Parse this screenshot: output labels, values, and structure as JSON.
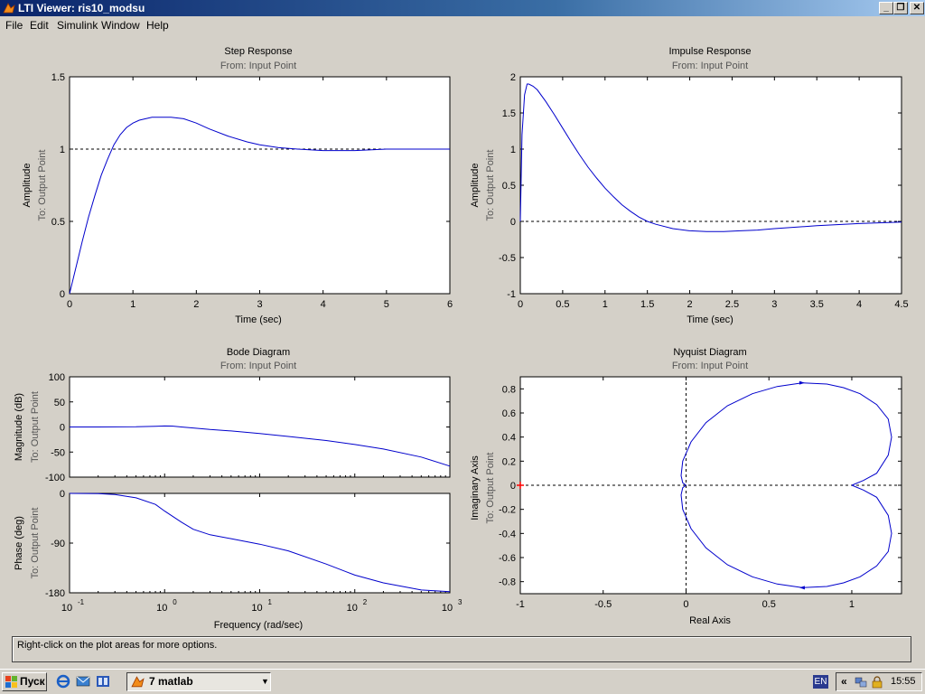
{
  "window": {
    "title": "LTI Viewer: ris10_modsu",
    "minimize": "_",
    "restore": "❐",
    "close": "✕"
  },
  "menu": [
    "File",
    "Edit",
    "Simulink",
    "Window",
    "Help"
  ],
  "status_text": "Right-click on the plot areas for more options.",
  "taskbar": {
    "start_label": "Пуск",
    "task_label": "7 matlab",
    "language": "EN",
    "tray_chevron": "«",
    "clock": "15:55"
  },
  "colors": {
    "response": "#0000cc",
    "reference": "#000000",
    "critical_point": "#ff0000",
    "title_bar": "#0a246a"
  },
  "chart_data": [
    {
      "id": "step",
      "type": "line",
      "title": "Step Response",
      "subtitle": "From: Input Point",
      "xlabel": "Time (sec)",
      "ylabel": "Amplitude",
      "ylabel2": "To: Output Point",
      "xlim": [
        0,
        6
      ],
      "ylim": [
        0,
        1.5
      ],
      "xticks": [
        "0",
        "1",
        "2",
        "3",
        "4",
        "5",
        "6"
      ],
      "yticks": [
        "0",
        "0.5",
        "1",
        "1.5"
      ],
      "reference_line": 1,
      "series": [
        {
          "x": [
            0,
            0.1,
            0.2,
            0.3,
            0.4,
            0.5,
            0.6,
            0.7,
            0.8,
            0.9,
            1.0,
            1.1,
            1.2,
            1.3,
            1.4,
            1.5,
            1.6,
            1.8,
            2.0,
            2.2,
            2.5,
            2.8,
            3.0,
            3.3,
            3.6,
            4.0,
            4.2,
            4.5,
            5.0,
            5.5,
            6.0
          ],
          "y": [
            0,
            0.18,
            0.36,
            0.53,
            0.68,
            0.82,
            0.93,
            1.03,
            1.1,
            1.15,
            1.18,
            1.2,
            1.21,
            1.22,
            1.22,
            1.22,
            1.22,
            1.21,
            1.18,
            1.14,
            1.09,
            1.05,
            1.03,
            1.01,
            1.0,
            0.99,
            0.99,
            0.99,
            1.0,
            1.0,
            1.0
          ]
        }
      ]
    },
    {
      "id": "impulse",
      "type": "line",
      "title": "Impulse Response",
      "subtitle": "From: Input Point",
      "xlabel": "Time (sec)",
      "ylabel": "Amplitude",
      "ylabel2": "To: Output Point",
      "xlim": [
        0,
        4.5
      ],
      "ylim": [
        -1,
        2
      ],
      "xticks": [
        "0",
        "0.5",
        "1",
        "1.5",
        "2",
        "2.5",
        "3",
        "3.5",
        "4",
        "4.5"
      ],
      "yticks": [
        "-1",
        "-0.5",
        "0",
        "0.5",
        "1",
        "1.5",
        "2"
      ],
      "reference_line": 0,
      "series": [
        {
          "x": [
            0,
            0.02,
            0.05,
            0.08,
            0.1,
            0.15,
            0.2,
            0.3,
            0.4,
            0.5,
            0.6,
            0.7,
            0.8,
            0.9,
            1.0,
            1.1,
            1.2,
            1.3,
            1.4,
            1.5,
            1.6,
            1.8,
            2.0,
            2.2,
            2.4,
            2.6,
            2.8,
            3.0,
            3.5,
            4.0,
            4.5
          ],
          "y": [
            0,
            1.2,
            1.75,
            1.9,
            1.9,
            1.87,
            1.82,
            1.66,
            1.48,
            1.29,
            1.1,
            0.92,
            0.75,
            0.6,
            0.46,
            0.34,
            0.23,
            0.14,
            0.06,
            0.0,
            -0.04,
            -0.1,
            -0.13,
            -0.14,
            -0.14,
            -0.13,
            -0.12,
            -0.1,
            -0.06,
            -0.03,
            -0.01
          ]
        }
      ]
    },
    {
      "id": "bode",
      "type": "line",
      "title": "Bode Diagram",
      "subtitle": "From: Input Point",
      "xlabel": "Frequency  (rad/sec)",
      "xscale": "log",
      "xlim": [
        0.1,
        1000
      ],
      "xticks": [
        "10",
        "10",
        "10",
        "10",
        "10"
      ],
      "xtick_exponents": [
        "-1",
        "0",
        "1",
        "2",
        "3"
      ],
      "panels": [
        {
          "name": "magnitude",
          "ylabel": "Magnitude (dB)",
          "ylabel2": "To: Output Point",
          "ylim": [
            -100,
            100
          ],
          "yticks": [
            "-100",
            "-50",
            "0",
            "50",
            "100"
          ],
          "series": [
            {
              "x": [
                0.1,
                0.2,
                0.5,
                0.8,
                1.0,
                1.2,
                1.5,
                2,
                3,
                5,
                10,
                20,
                50,
                100,
                200,
                500,
                1000
              ],
              "y": [
                0,
                0,
                0.3,
                1.5,
                2,
                1.8,
                0,
                -2,
                -5,
                -8,
                -13,
                -19,
                -27,
                -35,
                -44,
                -60,
                -78
              ]
            }
          ]
        },
        {
          "name": "phase",
          "ylabel": "Phase (deg)",
          "ylabel2": "To: Output Point",
          "ylim": [
            -180,
            0
          ],
          "yticks": [
            "-180",
            "-90",
            "0"
          ],
          "series": [
            {
              "x": [
                0.1,
                0.2,
                0.3,
                0.5,
                0.8,
                1.0,
                1.5,
                2,
                3,
                5,
                10,
                20,
                50,
                100,
                200,
                500,
                1000
              ],
              "y": [
                0,
                -0.5,
                -2,
                -8,
                -20,
                -32,
                -52,
                -65,
                -75,
                -82,
                -92,
                -104,
                -128,
                -148,
                -162,
                -175,
                -178
              ]
            }
          ]
        }
      ]
    },
    {
      "id": "nyquist",
      "type": "line",
      "title": "Nyquist Diagram",
      "subtitle": "From: Input Point",
      "xlabel": "Real Axis",
      "ylabel": "Imaginary Axis",
      "ylabel2": "To: Output Point",
      "xlim": [
        -1,
        1.3
      ],
      "ylim": [
        -0.9,
        0.9
      ],
      "xticks": [
        "-1",
        "-0.5",
        "0",
        "0.5",
        "1"
      ],
      "yticks": [
        "-0.8",
        "-0.6",
        "-0.4",
        "-0.2",
        "0",
        "0.2",
        "0.4",
        "0.6",
        "0.8"
      ],
      "critical_point": [
        -1,
        0
      ],
      "series": [
        {
          "x": [
            1.0,
            1.07,
            1.15,
            1.22,
            1.24,
            1.22,
            1.15,
            1.05,
            0.95,
            0.85,
            0.7,
            0.55,
            0.4,
            0.25,
            0.12,
            0.03,
            -0.02,
            -0.03,
            -0.02,
            0.0
          ],
          "y": [
            0.0,
            0.04,
            0.1,
            0.25,
            0.4,
            0.55,
            0.67,
            0.76,
            0.81,
            0.84,
            0.85,
            0.82,
            0.76,
            0.66,
            0.52,
            0.36,
            0.2,
            0.08,
            0.02,
            0.0
          ]
        }
      ]
    }
  ]
}
